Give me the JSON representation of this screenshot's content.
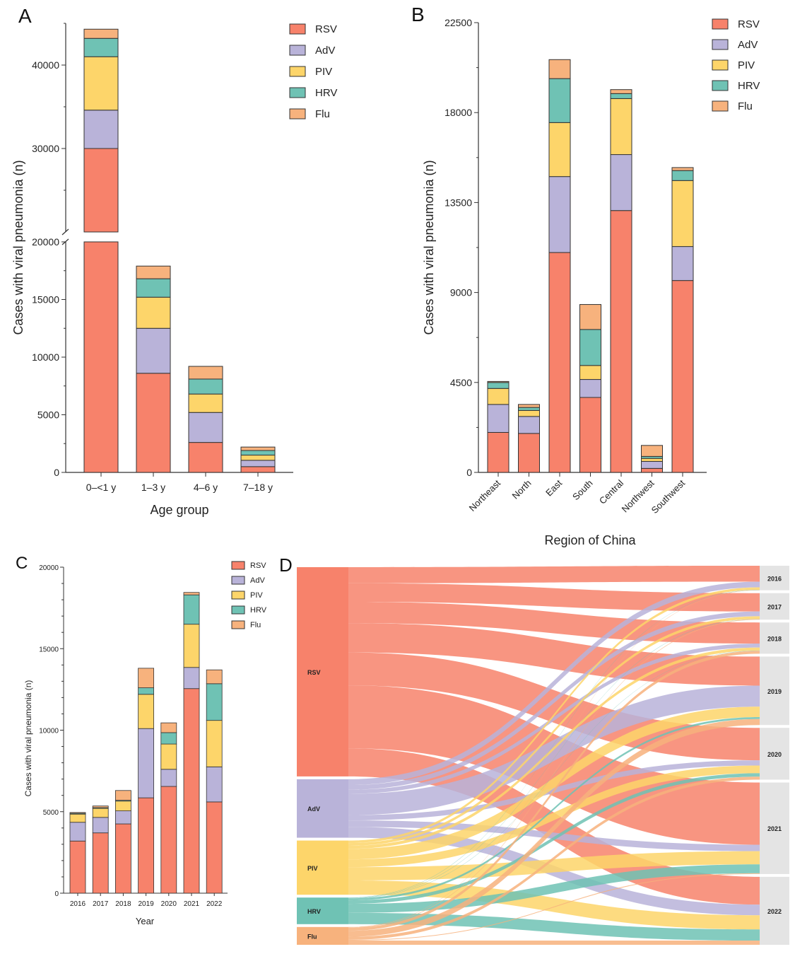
{
  "colors": {
    "RSV": "#F7826B",
    "AdV": "#B9B3D9",
    "PIV": "#FDD56A",
    "HRV": "#6FC2B4",
    "Flu": "#F7B27D",
    "stroke": "#333333"
  },
  "legend_labels": [
    "RSV",
    "AdV",
    "PIV",
    "HRV",
    "Flu"
  ],
  "chart_data": [
    {
      "panel": "A",
      "type": "bar",
      "stacked": true,
      "broken_axis": {
        "lower": [
          0,
          20000
        ],
        "upper": [
          20000,
          45000
        ]
      },
      "xlabel": "Age group",
      "ylabel": "Cases with viral pneumonia (n)",
      "categories": [
        "0–<1 y",
        "1–3 y",
        "4–6 y",
        "7–18 y"
      ],
      "yticks_lower": [
        "0",
        "5000",
        "10000",
        "15000",
        "20000"
      ],
      "yticks_upper": [
        "30000",
        "40000"
      ],
      "legend_position": "top-right",
      "series": [
        {
          "name": "RSV",
          "values": [
            30000,
            8600,
            2600,
            500
          ]
        },
        {
          "name": "AdV",
          "values": [
            4600,
            3900,
            2600,
            550
          ]
        },
        {
          "name": "PIV",
          "values": [
            6400,
            2700,
            1600,
            450
          ]
        },
        {
          "name": "HRV",
          "values": [
            2200,
            1600,
            1300,
            400
          ]
        },
        {
          "name": "Flu",
          "values": [
            1100,
            1100,
            1100,
            300
          ]
        }
      ]
    },
    {
      "panel": "B",
      "type": "bar",
      "stacked": true,
      "xlabel": "Region of China",
      "ylabel": "Cases with viral pneumonia (n)",
      "ylim": [
        0,
        22500
      ],
      "yticks": [
        "0",
        "4500",
        "9000",
        "13500",
        "18000",
        "22500"
      ],
      "categories": [
        "Northeast",
        "North",
        "East",
        "South",
        "Central",
        "Northwest",
        "Southwest"
      ],
      "legend_position": "top-right",
      "series": [
        {
          "name": "RSV",
          "values": [
            2000,
            1950,
            11000,
            3750,
            13100,
            200,
            9600
          ]
        },
        {
          "name": "AdV",
          "values": [
            1400,
            850,
            3800,
            900,
            2800,
            350,
            1700
          ]
        },
        {
          "name": "PIV",
          "values": [
            800,
            300,
            2700,
            700,
            2800,
            150,
            3300
          ]
        },
        {
          "name": "HRV",
          "values": [
            300,
            150,
            2200,
            1800,
            250,
            100,
            500
          ]
        },
        {
          "name": "Flu",
          "values": [
            50,
            150,
            950,
            1250,
            200,
            550,
            150
          ]
        }
      ]
    },
    {
      "panel": "C",
      "type": "bar",
      "stacked": true,
      "xlabel": "Year",
      "ylabel": "Cases with viral pneumonia (n)",
      "ylim": [
        0,
        20000
      ],
      "yticks": [
        "0",
        "5000",
        "10000",
        "15000",
        "20000"
      ],
      "categories": [
        "2016",
        "2017",
        "2018",
        "2019",
        "2020",
        "2021",
        "2022"
      ],
      "legend_position": "top-right",
      "series": [
        {
          "name": "RSV",
          "values": [
            3200,
            3700,
            4250,
            5850,
            6550,
            12550,
            5600
          ]
        },
        {
          "name": "AdV",
          "values": [
            1150,
            950,
            800,
            4250,
            1050,
            1300,
            2150
          ]
        },
        {
          "name": "PIV",
          "values": [
            500,
            550,
            600,
            2100,
            1550,
            2650,
            2850
          ]
        },
        {
          "name": "HRV",
          "values": [
            50,
            50,
            50,
            400,
            700,
            1800,
            2250
          ]
        },
        {
          "name": "Flu",
          "values": [
            50,
            100,
            600,
            1200,
            600,
            150,
            850
          ]
        }
      ]
    },
    {
      "panel": "D",
      "type": "sankey",
      "sources": [
        "RSV",
        "AdV",
        "PIV",
        "HRV",
        "Flu"
      ],
      "targets": [
        "2016",
        "2017",
        "2018",
        "2019",
        "2020",
        "2021",
        "2022"
      ]
    }
  ],
  "panel_labels": {
    "A": "A",
    "B": "B",
    "C": "C",
    "D": "D"
  }
}
